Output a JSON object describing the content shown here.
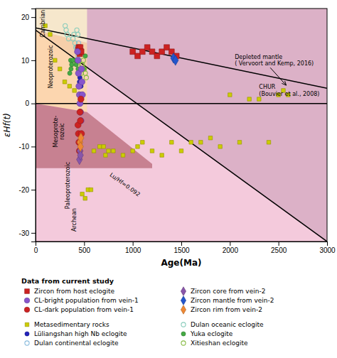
{
  "chart_data": {
    "type": "scatter",
    "x_label": "Age(Ma)",
    "y_label": "εHf(t)",
    "xlim": [
      0,
      3000
    ],
    "ylim": [
      -32,
      22
    ],
    "xticks": [
      0,
      500,
      1000,
      1500,
      2000,
      2500,
      3000
    ],
    "yticks": [
      -30,
      -20,
      -10,
      0,
      10,
      20
    ],
    "grid": false,
    "legend": "bottom",
    "legend_title": "Data from current study",
    "regions": [
      {
        "color": "#F0B8D0",
        "x": [
          0,
          3000,
          3000,
          0
        ],
        "values": [
          -32,
          -32,
          22,
          22
        ]
      },
      {
        "color": "#D4A8C0",
        "x": [
          0,
          0,
          3000,
          3000
        ],
        "values": [
          17,
          22,
          22,
          -32
        ]
      },
      {
        "color": "#FFFACD",
        "x": [
          0,
          530,
          530,
          0
        ],
        "values": [
          17,
          14,
          22,
          22
        ]
      },
      {
        "color": "#FFD9A0",
        "x": [
          0,
          0,
          530,
          530
        ],
        "values": [
          0,
          17,
          14,
          -2
        ]
      },
      {
        "color": "#B86878",
        "x": [
          0,
          0,
          530,
          1200,
          1200
        ],
        "values": [
          -15,
          0,
          -2,
          -14,
          -15
        ]
      }
    ],
    "era_labels": [
      {
        "text": "Cambrian",
        "x": 75,
        "y": 18.5
      },
      {
        "text": "Neoproterozoic",
        "x": 155,
        "y": 8.5
      },
      {
        "text": "Mesoprote-\nrozoic",
        "x": 240,
        "y": -6.5
      },
      {
        "text": "Paleoproterozoic",
        "x": 330,
        "y": -19
      },
      {
        "text": "Archean",
        "x": 400,
        "y": -27
      }
    ],
    "lines": [
      {
        "x": [
          0,
          3000
        ],
        "values": [
          17.0,
          -32.0
        ],
        "label": "Lu/Hf=0.092",
        "label_x": 750,
        "label_y": -17
      },
      {
        "x": [
          0,
          3000
        ],
        "values": [
          17.5,
          3.5
        ],
        "label": "Depleted mantle\n( Vervoort and Kemp, 2016)",
        "label_x": 2050,
        "label_y": 10,
        "arrow_x": 2580,
        "arrow_y": 4.2
      },
      {
        "x": [
          0,
          3000
        ],
        "values": [
          0,
          0
        ],
        "label": "CHUR\n(Bouvier et al., 2008)",
        "label_x": 2300,
        "label_y": 1.5
      }
    ],
    "series": [
      {
        "name": "Metasedimentary rocks",
        "color": "#CCCC00",
        "marker": "square",
        "x": [
          480,
          510,
          540,
          570,
          600,
          660,
          720,
          800,
          900,
          1000,
          1050,
          1100,
          1200,
          1300,
          1400,
          1500,
          1600,
          1800,
          2000,
          2500,
          2550,
          2600,
          100,
          150,
          200,
          250,
          300,
          350,
          400,
          450,
          700,
          750,
          1700,
          1900,
          2100,
          2200,
          2300,
          2400
        ],
        "values": [
          -21,
          -22,
          -20,
          -20,
          -11,
          -10,
          -12,
          -11,
          -12,
          -11,
          -10,
          -9,
          -11,
          -12,
          -9,
          -11,
          -9,
          -8,
          2,
          2,
          3,
          2,
          18,
          16,
          10,
          8,
          5,
          4,
          3,
          2,
          -10,
          -11,
          -9,
          -10,
          -9,
          1,
          1,
          -9
        ]
      },
      {
        "name": "Lüliangshan high Nb eclogite",
        "color": "#2222BB",
        "marker": "circle",
        "x": [
          448,
          452,
          456,
          460,
          464,
          468
        ],
        "values": [
          4,
          5,
          6,
          4,
          5,
          4
        ]
      },
      {
        "name": "Dulan continental eclogite",
        "color": "#88BBDD",
        "marker": "open-circle",
        "x": [
          425,
          432,
          438,
          443,
          448
        ],
        "values": [
          13,
          12,
          11,
          14,
          13
        ]
      },
      {
        "name": "Dulan oceanic eclogite",
        "color": "#88CCBB",
        "marker": "open-circle",
        "x": [
          385,
          395,
          405,
          415,
          425,
          435,
          305,
          315,
          325,
          340
        ],
        "values": [
          15,
          16,
          14,
          13,
          17,
          16,
          18,
          17,
          16,
          15
        ]
      },
      {
        "name": "Yuka eclogite",
        "color": "#44AA44",
        "marker": "circle",
        "x": [
          402,
          418,
          438,
          352,
          362,
          372,
          502,
          512,
          365,
          385
        ],
        "values": [
          10,
          9,
          8,
          7,
          10,
          9,
          8,
          11,
          8,
          10
        ]
      },
      {
        "name": "Xitieshan eclogite",
        "color": "#88BB44",
        "marker": "open-circle",
        "x": [
          462,
          472,
          482,
          492,
          502,
          512,
          522,
          475,
          485
        ],
        "values": [
          8,
          7,
          9,
          10,
          8,
          7,
          6,
          9,
          8
        ]
      }
    ],
    "study_series": [
      {
        "name": "Zircon from host eclogite",
        "color": "#CC2222",
        "marker": "square",
        "x": [
          440,
          445,
          450,
          455,
          460,
          465,
          470,
          1000,
          1050,
          1100,
          1150,
          1200,
          1250,
          1300,
          1350,
          1400,
          1450
        ],
        "values": [
          12.5,
          13,
          12,
          11.5,
          13,
          12,
          12,
          12,
          11,
          12,
          13,
          12,
          11,
          12,
          13,
          12,
          11
        ]
      },
      {
        "name": "CL-bright population from vein-1",
        "color": "#8855CC",
        "marker": "circle",
        "x": [
          432,
          437,
          442,
          447,
          452,
          457,
          462,
          467,
          472,
          477,
          482
        ],
        "values": [
          12,
          10,
          7,
          4,
          2,
          0,
          -2,
          -4,
          8,
          5,
          2
        ]
      },
      {
        "name": "CL-dark population from vein-1",
        "color": "#CC2222",
        "marker": "circle",
        "x": [
          437,
          442,
          447,
          452,
          457,
          462,
          467,
          472
        ],
        "values": [
          -5,
          -7,
          -9,
          -11,
          -2,
          -4,
          1,
          -7
        ]
      },
      {
        "name": "Zircon core from vein-2",
        "color": "#8855AA",
        "marker": "diamond",
        "x": [
          452,
          457,
          462
        ],
        "values": [
          -13,
          -11,
          -12
        ]
      },
      {
        "name": "Zircon mantle from vein-2",
        "color": "#2255CC",
        "marker": "diamond",
        "x": [
          1420,
          1440
        ],
        "values": [
          10.5,
          10
        ]
      },
      {
        "name": "Zircon rim from vein-2",
        "color": "#EE8833",
        "marker": "diamond",
        "x": [
          457,
          462,
          467
        ],
        "values": [
          -9,
          -10,
          -8
        ]
      }
    ]
  }
}
